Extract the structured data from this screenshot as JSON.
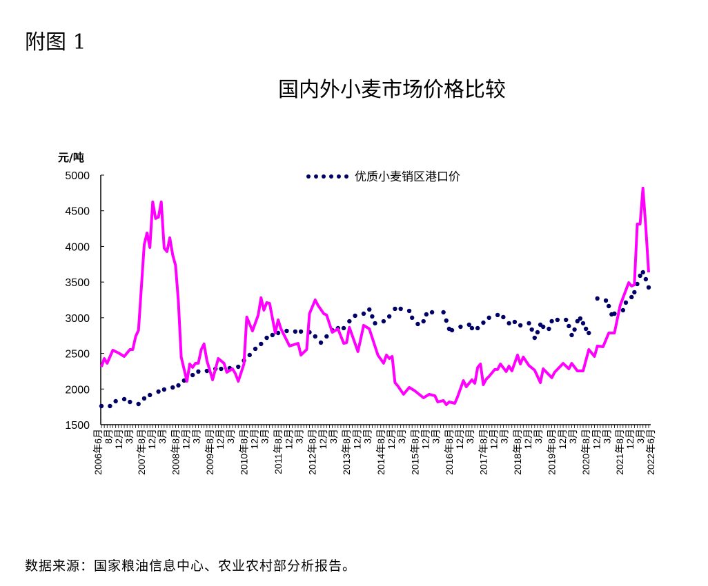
{
  "figure_label": "附图 1",
  "source_note": "数据来源：国家粮油信息中心、农业农村部分析报告。",
  "chart_data": {
    "type": "line",
    "title": "国内外小麦市场价格比较",
    "ylabel": "元/吨",
    "xlabel": "",
    "ylim": [
      1500,
      5000
    ],
    "yticks": [
      1500,
      2000,
      2500,
      3000,
      3500,
      4000,
      4500,
      5000
    ],
    "xlim": [
      "2006-06",
      "2022-06"
    ],
    "grid": false,
    "legend": "top-center",
    "xtick_labels": [
      {
        "date": "2006-06",
        "label": "2006年6月"
      },
      {
        "date": "2006-08",
        "label": "8月"
      },
      {
        "date": "2006-12",
        "label": "12月"
      },
      {
        "date": "2007-03",
        "label": "3月"
      },
      {
        "date": "2007-08",
        "label": "2007年8月"
      },
      {
        "date": "2007-12",
        "label": "12月"
      },
      {
        "date": "2008-03",
        "label": "3月"
      },
      {
        "date": "2008-08",
        "label": "2008年8月"
      },
      {
        "date": "2008-12",
        "label": "12月"
      },
      {
        "date": "2009-03",
        "label": "3月"
      },
      {
        "date": "2009-08",
        "label": "2009年8月"
      },
      {
        "date": "2009-12",
        "label": "12月"
      },
      {
        "date": "2010-03",
        "label": "3月"
      },
      {
        "date": "2010-08",
        "label": "2010年8月"
      },
      {
        "date": "2010-12",
        "label": "12月"
      },
      {
        "date": "2011-03",
        "label": "3月"
      },
      {
        "date": "2011-08",
        "label": "2011年8月"
      },
      {
        "date": "2011-12",
        "label": "12月"
      },
      {
        "date": "2012-03",
        "label": "3月"
      },
      {
        "date": "2012-08",
        "label": "2012年8月"
      },
      {
        "date": "2012-12",
        "label": "12月"
      },
      {
        "date": "2013-03",
        "label": "3月"
      },
      {
        "date": "2013-08",
        "label": "2013年8月"
      },
      {
        "date": "2013-12",
        "label": "12月"
      },
      {
        "date": "2014-03",
        "label": "3月"
      },
      {
        "date": "2014-08",
        "label": "2014年8月"
      },
      {
        "date": "2014-12",
        "label": "12月"
      },
      {
        "date": "2015-03",
        "label": "3月"
      },
      {
        "date": "2015-08",
        "label": "2015年8月"
      },
      {
        "date": "2015-12",
        "label": "12月"
      },
      {
        "date": "2016-03",
        "label": "3月"
      },
      {
        "date": "2016-08",
        "label": "2016年8月"
      },
      {
        "date": "2016-12",
        "label": "12月"
      },
      {
        "date": "2017-03",
        "label": "3月"
      },
      {
        "date": "2017-08",
        "label": "2017年8月"
      },
      {
        "date": "2017-12",
        "label": "12月"
      },
      {
        "date": "2018-03",
        "label": "3月"
      },
      {
        "date": "2018-08",
        "label": "2018年8月"
      },
      {
        "date": "2018-12",
        "label": "12月"
      },
      {
        "date": "2019-03",
        "label": "3月"
      },
      {
        "date": "2019-08",
        "label": "2019年8月"
      },
      {
        "date": "2019-12",
        "label": "12月"
      },
      {
        "date": "2020-03",
        "label": "3月"
      },
      {
        "date": "2020-08",
        "label": "2020年8月"
      },
      {
        "date": "2020-12",
        "label": "12月"
      },
      {
        "date": "2021-03",
        "label": "3月"
      },
      {
        "date": "2021-08",
        "label": "2021年8月"
      },
      {
        "date": "2021-12",
        "label": "12月"
      },
      {
        "date": "2022-03",
        "label": "3月"
      },
      {
        "date": "2022-06",
        "label": "2022年6月"
      }
    ],
    "series": [
      {
        "name": "优质小麦销区港口价",
        "style": "dots",
        "color": "#000066",
        "points": [
          [
            "2006-06",
            1761
          ],
          [
            "2006-09",
            1761
          ],
          [
            "2006-11",
            1829
          ],
          [
            "2007-02",
            1858
          ],
          [
            "2007-04",
            1819
          ],
          [
            "2007-07",
            1790
          ],
          [
            "2007-09",
            1868
          ],
          [
            "2007-11",
            1916
          ],
          [
            "2008-02",
            1964
          ],
          [
            "2008-04",
            1993
          ],
          [
            "2008-07",
            2022
          ],
          [
            "2008-09",
            2051
          ],
          [
            "2008-11",
            2119
          ],
          [
            "2009-02",
            2196
          ],
          [
            "2009-04",
            2245
          ],
          [
            "2009-07",
            2254
          ],
          [
            "2009-10",
            2283
          ],
          [
            "2009-12",
            2283
          ],
          [
            "2010-03",
            2293
          ],
          [
            "2010-06",
            2312
          ],
          [
            "2010-08",
            2399
          ],
          [
            "2010-10",
            2477
          ],
          [
            "2010-12",
            2564
          ],
          [
            "2011-02",
            2632
          ],
          [
            "2011-04",
            2718
          ],
          [
            "2011-06",
            2757
          ],
          [
            "2011-08",
            2786
          ],
          [
            "2011-11",
            2815
          ],
          [
            "2012-02",
            2806
          ],
          [
            "2012-04",
            2806
          ],
          [
            "2012-07",
            2796
          ],
          [
            "2012-09",
            2738
          ],
          [
            "2012-11",
            2651
          ],
          [
            "2013-01",
            2738
          ],
          [
            "2013-03",
            2825
          ],
          [
            "2013-05",
            2854
          ],
          [
            "2013-07",
            2854
          ],
          [
            "2013-09",
            2950
          ],
          [
            "2013-11",
            3028
          ],
          [
            "2014-02",
            3057
          ],
          [
            "2014-04",
            3115
          ],
          [
            "2014-05",
            3018
          ],
          [
            "2014-06",
            2922
          ],
          [
            "2014-09",
            2950
          ],
          [
            "2014-11",
            3018
          ],
          [
            "2015-01",
            3125
          ],
          [
            "2015-03",
            3125
          ],
          [
            "2015-06",
            3096
          ],
          [
            "2015-07",
            3000
          ],
          [
            "2015-09",
            2912
          ],
          [
            "2015-11",
            2950
          ],
          [
            "2015-12",
            3047
          ],
          [
            "2016-02",
            3076
          ],
          [
            "2016-06",
            3076
          ],
          [
            "2016-07",
            2960
          ],
          [
            "2016-08",
            2844
          ],
          [
            "2016-09",
            2825
          ],
          [
            "2016-12",
            2873
          ],
          [
            "2017-03",
            2902
          ],
          [
            "2017-04",
            2854
          ],
          [
            "2017-06",
            2854
          ],
          [
            "2017-08",
            2931
          ],
          [
            "2017-10",
            3000
          ],
          [
            "2018-01",
            3038
          ],
          [
            "2018-03",
            3009
          ],
          [
            "2018-05",
            2922
          ],
          [
            "2018-07",
            2941
          ],
          [
            "2018-09",
            2893
          ],
          [
            "2018-12",
            2922
          ],
          [
            "2019-01",
            2834
          ],
          [
            "2019-02",
            2718
          ],
          [
            "2019-03",
            2796
          ],
          [
            "2019-04",
            2902
          ],
          [
            "2019-05",
            2873
          ],
          [
            "2019-07",
            2844
          ],
          [
            "2019-08",
            2951
          ],
          [
            "2019-10",
            2970
          ],
          [
            "2020-01",
            2970
          ],
          [
            "2020-02",
            2883
          ],
          [
            "2020-03",
            2757
          ],
          [
            "2020-04",
            2834
          ],
          [
            "2020-05",
            2951
          ],
          [
            "2020-06",
            2989
          ],
          [
            "2020-07",
            2922
          ],
          [
            "2020-08",
            2844
          ],
          [
            "2020-09",
            2786
          ],
          [
            "2020-12",
            3270
          ],
          [
            "2021-03",
            3241
          ],
          [
            "2021-04",
            3163
          ],
          [
            "2021-05",
            3047
          ],
          [
            "2021-06",
            3057
          ],
          [
            "2021-09",
            3105
          ],
          [
            "2021-10",
            3212
          ],
          [
            "2021-12",
            3289
          ],
          [
            "2022-01",
            3357
          ],
          [
            "2022-02",
            3473
          ],
          [
            "2022-03",
            3589
          ],
          [
            "2022-04",
            3637
          ],
          [
            "2022-05",
            3540
          ],
          [
            "2022-06",
            3425
          ]
        ]
      },
      {
        "style": "line",
        "color": "#FF00FF",
        "points": [
          [
            "2006-06",
            2312
          ],
          [
            "2006-07",
            2428
          ],
          [
            "2006-08",
            2361
          ],
          [
            "2006-10",
            2545
          ],
          [
            "2006-12",
            2506
          ],
          [
            "2007-02",
            2457
          ],
          [
            "2007-04",
            2554
          ],
          [
            "2007-05",
            2554
          ],
          [
            "2007-06",
            2738
          ],
          [
            "2007-07",
            2825
          ],
          [
            "2007-09",
            4024
          ],
          [
            "2007-10",
            4189
          ],
          [
            "2007-11",
            3985
          ],
          [
            "2007-12",
            4624
          ],
          [
            "2008-01",
            4392
          ],
          [
            "2008-02",
            4411
          ],
          [
            "2008-03",
            4624
          ],
          [
            "2008-04",
            3976
          ],
          [
            "2008-05",
            3927
          ],
          [
            "2008-06",
            4121
          ],
          [
            "2008-07",
            3879
          ],
          [
            "2008-08",
            3734
          ],
          [
            "2008-09",
            3231
          ],
          [
            "2008-10",
            2448
          ],
          [
            "2008-12",
            2109
          ],
          [
            "2009-01",
            2351
          ],
          [
            "2009-02",
            2303
          ],
          [
            "2009-03",
            2361
          ],
          [
            "2009-04",
            2361
          ],
          [
            "2009-05",
            2554
          ],
          [
            "2009-06",
            2632
          ],
          [
            "2009-07",
            2399
          ],
          [
            "2009-09",
            2129
          ],
          [
            "2009-11",
            2428
          ],
          [
            "2010-01",
            2361
          ],
          [
            "2010-02",
            2235
          ],
          [
            "2010-04",
            2283
          ],
          [
            "2010-05",
            2216
          ],
          [
            "2010-06",
            2109
          ],
          [
            "2010-08",
            2351
          ],
          [
            "2010-09",
            3009
          ],
          [
            "2010-11",
            2815
          ],
          [
            "2011-01",
            3038
          ],
          [
            "2011-02",
            3280
          ],
          [
            "2011-03",
            3106
          ],
          [
            "2011-04",
            3212
          ],
          [
            "2011-05",
            3202
          ],
          [
            "2011-07",
            2786
          ],
          [
            "2011-08",
            2970
          ],
          [
            "2011-09",
            2844
          ],
          [
            "2011-12",
            2603
          ],
          [
            "2012-03",
            2641
          ],
          [
            "2012-04",
            2477
          ],
          [
            "2012-06",
            2554
          ],
          [
            "2012-07",
            3057
          ],
          [
            "2012-09",
            3250
          ],
          [
            "2012-10",
            3173
          ],
          [
            "2012-12",
            3057
          ],
          [
            "2013-01",
            3038
          ],
          [
            "2013-03",
            2796
          ],
          [
            "2013-05",
            2844
          ],
          [
            "2013-07",
            2641
          ],
          [
            "2013-08",
            2651
          ],
          [
            "2013-09",
            2864
          ],
          [
            "2013-12",
            2525
          ],
          [
            "2014-02",
            2893
          ],
          [
            "2014-04",
            2844
          ],
          [
            "2014-07",
            2477
          ],
          [
            "2014-09",
            2361
          ],
          [
            "2014-10",
            2477
          ],
          [
            "2014-11",
            2428
          ],
          [
            "2014-12",
            2457
          ],
          [
            "2015-01",
            2090
          ],
          [
            "2015-02",
            2042
          ],
          [
            "2015-04",
            1926
          ],
          [
            "2015-06",
            2023
          ],
          [
            "2015-08",
            1974
          ],
          [
            "2015-11",
            1877
          ],
          [
            "2016-01",
            1926
          ],
          [
            "2016-03",
            1906
          ],
          [
            "2016-04",
            1819
          ],
          [
            "2016-06",
            1838
          ],
          [
            "2016-07",
            1780
          ],
          [
            "2016-08",
            1819
          ],
          [
            "2016-10",
            1800
          ],
          [
            "2016-11",
            1896
          ],
          [
            "2017-01",
            2119
          ],
          [
            "2017-02",
            2032
          ],
          [
            "2017-04",
            2129
          ],
          [
            "2017-05",
            2080
          ],
          [
            "2017-06",
            2303
          ],
          [
            "2017-07",
            2351
          ],
          [
            "2017-08",
            2061
          ],
          [
            "2017-09",
            2138
          ],
          [
            "2017-10",
            2177
          ],
          [
            "2017-12",
            2274
          ],
          [
            "2018-01",
            2274
          ],
          [
            "2018-02",
            2351
          ],
          [
            "2018-04",
            2245
          ],
          [
            "2018-05",
            2322
          ],
          [
            "2018-06",
            2254
          ],
          [
            "2018-08",
            2477
          ],
          [
            "2018-09",
            2351
          ],
          [
            "2018-10",
            2448
          ],
          [
            "2018-12",
            2330
          ],
          [
            "2019-02",
            2264
          ],
          [
            "2019-04",
            2090
          ],
          [
            "2019-05",
            2283
          ],
          [
            "2019-08",
            2158
          ],
          [
            "2019-09",
            2235
          ],
          [
            "2019-12",
            2360
          ],
          [
            "2020-02",
            2283
          ],
          [
            "2020-03",
            2360
          ],
          [
            "2020-05",
            2254
          ],
          [
            "2020-07",
            2254
          ],
          [
            "2020-09",
            2554
          ],
          [
            "2020-11",
            2457
          ],
          [
            "2020-12",
            2603
          ],
          [
            "2021-02",
            2593
          ],
          [
            "2021-04",
            2786
          ],
          [
            "2021-06",
            2786
          ],
          [
            "2021-08",
            3173
          ],
          [
            "2021-11",
            3492
          ],
          [
            "2021-12",
            3444
          ],
          [
            "2022-01",
            3463
          ],
          [
            "2022-02",
            4314
          ],
          [
            "2022-03",
            4314
          ],
          [
            "2022-04",
            4817
          ],
          [
            "2022-05",
            4266
          ],
          [
            "2022-06",
            3637
          ]
        ]
      }
    ]
  }
}
